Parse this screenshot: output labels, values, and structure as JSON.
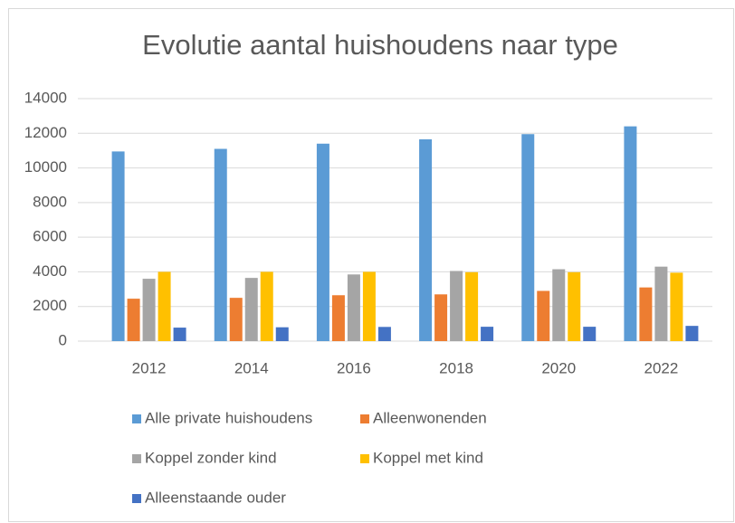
{
  "chart_data": {
    "type": "bar",
    "title": "Evolutie aantal huishoudens naar type",
    "categories": [
      "2012",
      "2014",
      "2016",
      "2018",
      "2020",
      "2022"
    ],
    "series": [
      {
        "name": "Alle private huishoudens",
        "color": "#5b9bd5",
        "values": [
          10950,
          11100,
          11400,
          11650,
          11950,
          12400
        ]
      },
      {
        "name": "Alleenwonenden",
        "color": "#ed7d31",
        "values": [
          2450,
          2500,
          2650,
          2700,
          2900,
          3100
        ]
      },
      {
        "name": "Koppel zonder kind",
        "color": "#a5a5a5",
        "values": [
          3600,
          3650,
          3850,
          4050,
          4150,
          4300
        ]
      },
      {
        "name": "Koppel met kind",
        "color": "#ffc000",
        "values": [
          4000,
          4000,
          4000,
          3980,
          3980,
          3950
        ]
      },
      {
        "name": "Alleenstaande ouder",
        "color": "#4472c4",
        "values": [
          780,
          800,
          820,
          830,
          830,
          880
        ]
      }
    ],
    "ylim": [
      0,
      14000
    ],
    "yticks": [
      0,
      2000,
      4000,
      6000,
      8000,
      10000,
      12000,
      14000
    ],
    "grid": true
  }
}
